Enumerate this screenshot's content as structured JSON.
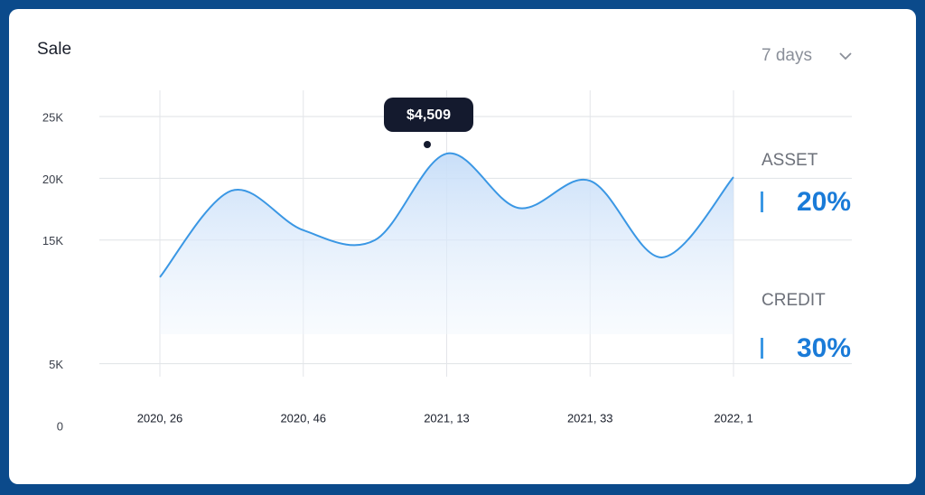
{
  "chart_data": {
    "type": "area",
    "title": "Sale",
    "categories": [
      "2020, 26",
      null,
      "2020, 46",
      null,
      "2021, 13",
      null,
      "2021, 33",
      null,
      "2022, 1"
    ],
    "values": [
      12000,
      19000,
      15800,
      15000,
      22000,
      17600,
      19800,
      13600,
      20100
    ],
    "color": "#3a97e4",
    "ylim": [
      0,
      25000
    ],
    "yticks": [
      {
        "value": 0,
        "label": "0"
      },
      {
        "value": 5000,
        "label": "5K"
      },
      {
        "value": 15000,
        "label": "15K"
      },
      {
        "value": 20000,
        "label": "20K"
      },
      {
        "value": 25000,
        "label": "25K"
      }
    ],
    "grid": true,
    "annotation": "$4,509"
  },
  "period_select": "7 days",
  "side_stats": [
    {
      "label": "ASSET",
      "value": "20%"
    },
    {
      "label": "CREDIT",
      "value": "30%"
    }
  ]
}
